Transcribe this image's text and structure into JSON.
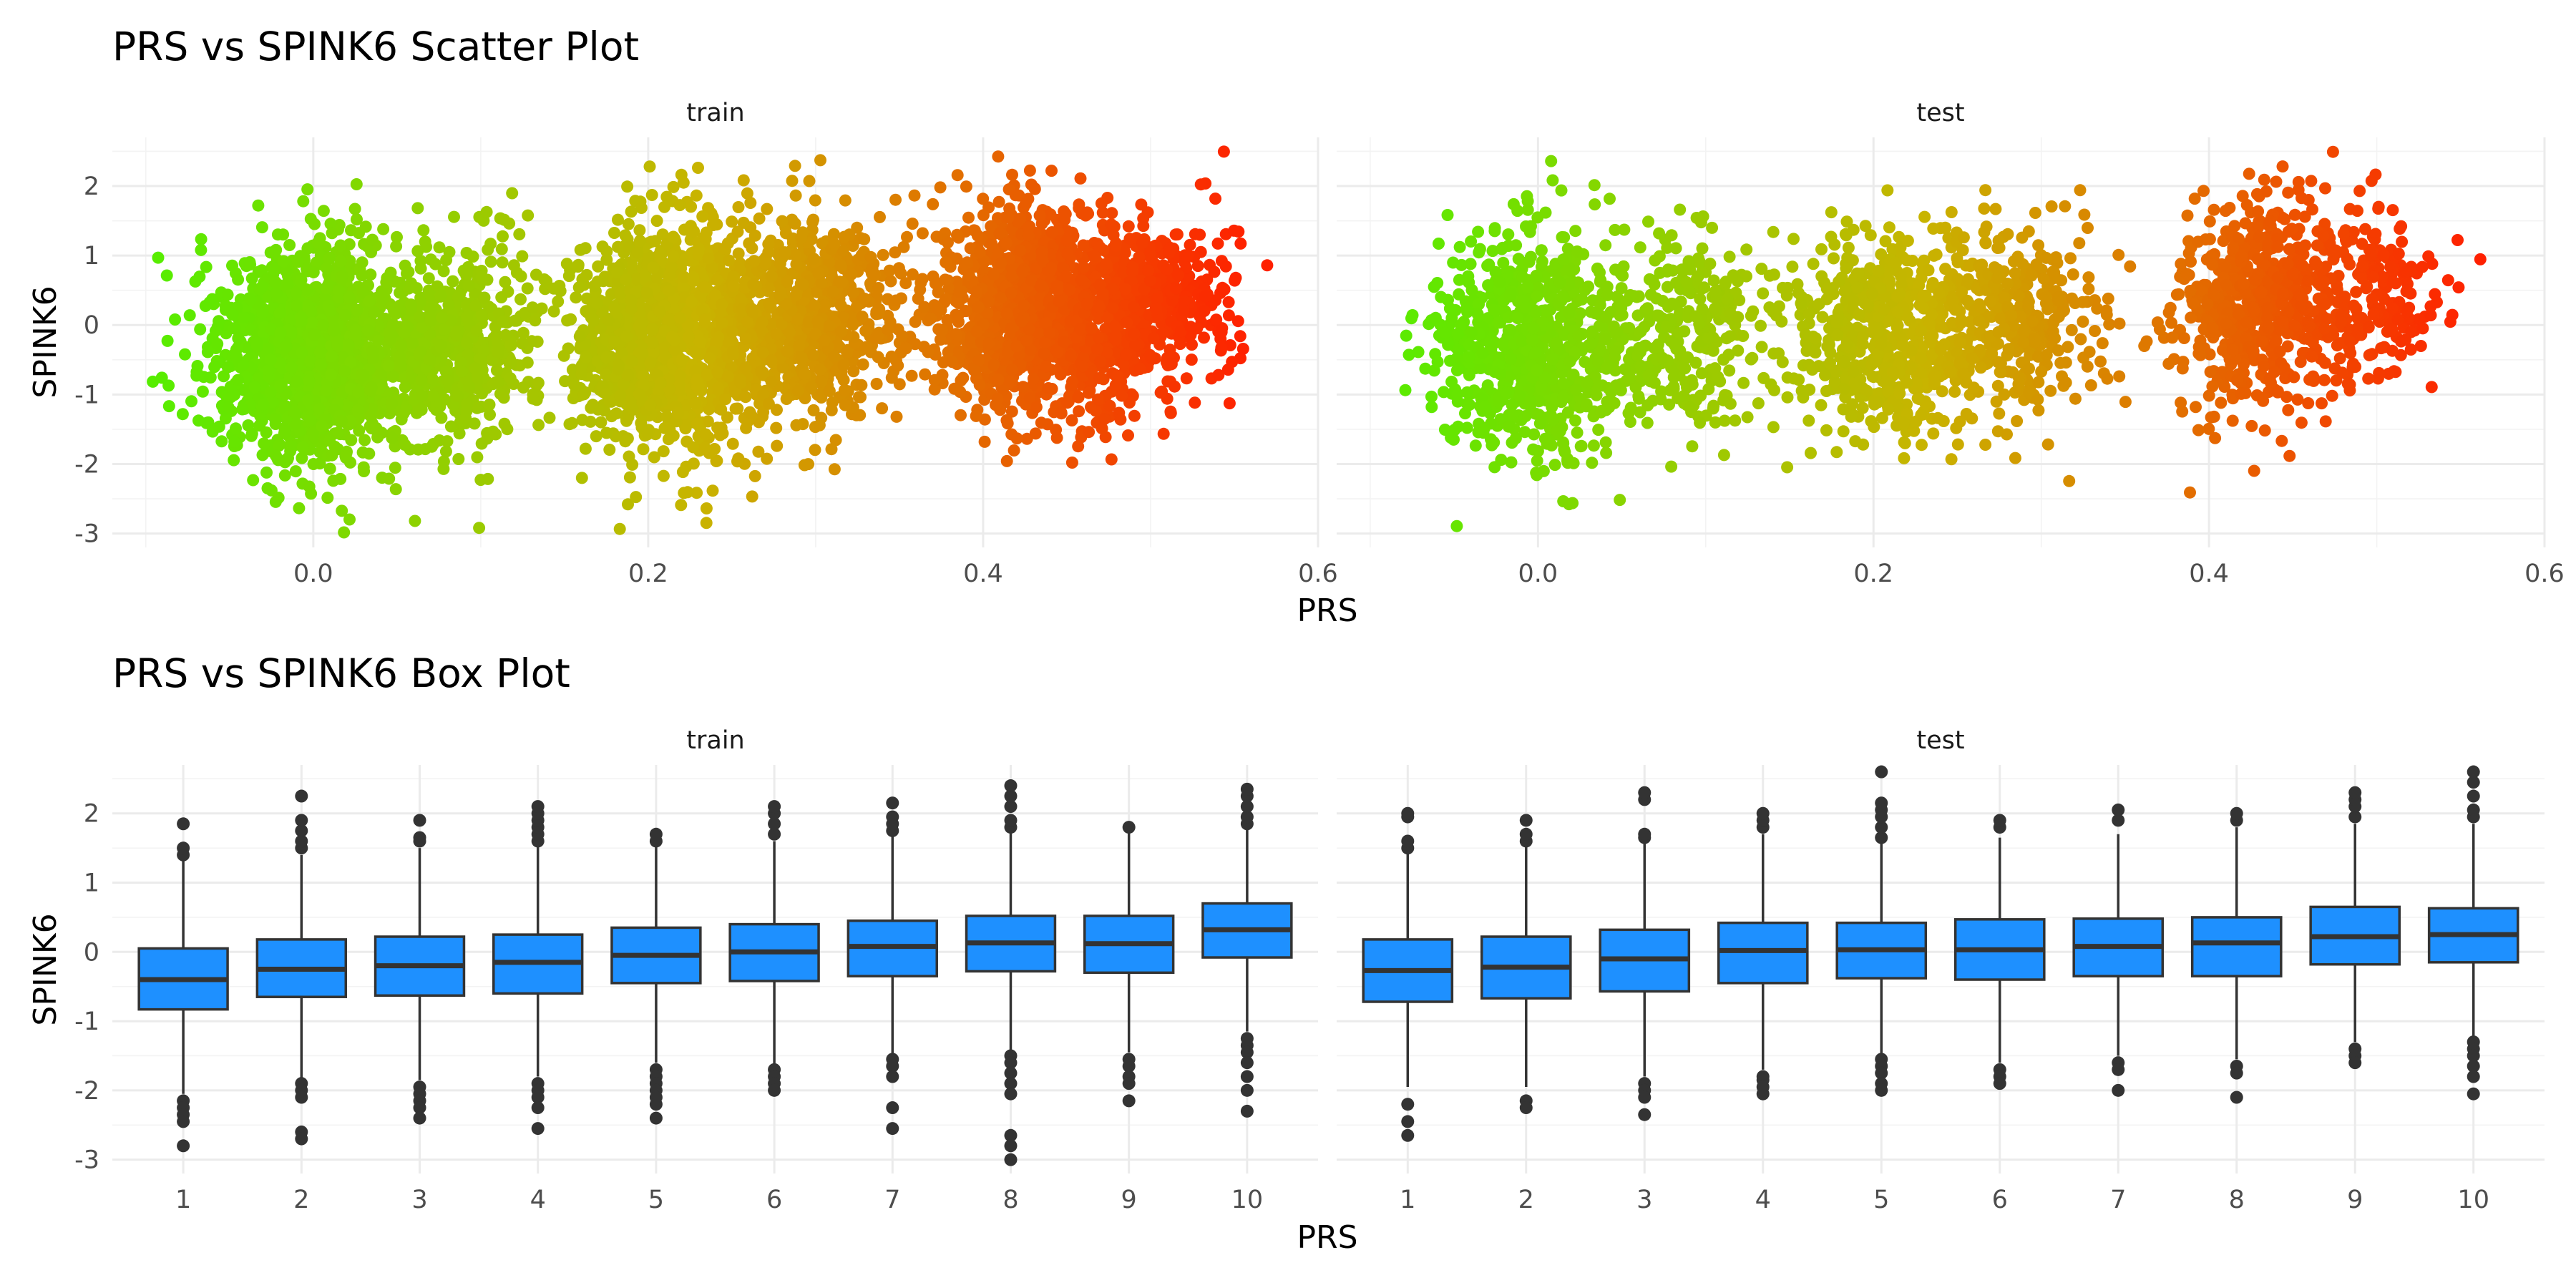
{
  "chart_data": [
    {
      "type": "scatter",
      "title": "PRS vs SPINK6 Scatter Plot",
      "xlabel": "PRS",
      "ylabel": "SPINK6",
      "panels": [
        "train",
        "test"
      ],
      "xlim": [
        -0.12,
        0.6
      ],
      "ylim": [
        -3.2,
        2.7
      ],
      "x_ticks": [
        "0.0",
        "0.2",
        "0.4",
        "0.6"
      ],
      "y_ticks": [
        "-3",
        "-2",
        "-1",
        "0",
        "1",
        "2"
      ],
      "grid": true,
      "color_scale": {
        "low": "#55ee00",
        "mid": "#c8b400",
        "high": "#ff2000"
      },
      "clusters": {
        "train": [
          {
            "x_center": 0.0,
            "x_spread": 0.03,
            "y_center": -0.4,
            "y_spread": 0.8,
            "n": 1400
          },
          {
            "x_center": 0.085,
            "x_spread": 0.025,
            "y_center": -0.3,
            "y_spread": 0.75,
            "n": 500
          },
          {
            "x_center": 0.215,
            "x_spread": 0.03,
            "y_center": -0.2,
            "y_spread": 0.8,
            "n": 1300
          },
          {
            "x_center": 0.3,
            "x_spread": 0.025,
            "y_center": 0.1,
            "y_spread": 0.7,
            "n": 600
          },
          {
            "x_center": 0.43,
            "x_spread": 0.03,
            "y_center": 0.2,
            "y_spread": 0.75,
            "n": 1300
          },
          {
            "x_center": 0.5,
            "x_spread": 0.025,
            "y_center": 0.3,
            "y_spread": 0.65,
            "n": 400
          }
        ],
        "test": [
          {
            "x_center": -0.005,
            "x_spread": 0.03,
            "y_center": -0.3,
            "y_spread": 0.8,
            "n": 700
          },
          {
            "x_center": 0.085,
            "x_spread": 0.025,
            "y_center": -0.1,
            "y_spread": 0.7,
            "n": 300
          },
          {
            "x_center": 0.21,
            "x_spread": 0.03,
            "y_center": -0.1,
            "y_spread": 0.8,
            "n": 650
          },
          {
            "x_center": 0.29,
            "x_spread": 0.025,
            "y_center": 0.1,
            "y_spread": 0.7,
            "n": 300
          },
          {
            "x_center": 0.43,
            "x_spread": 0.025,
            "y_center": 0.3,
            "y_spread": 0.75,
            "n": 600
          },
          {
            "x_center": 0.5,
            "x_spread": 0.02,
            "y_center": 0.4,
            "y_spread": 0.6,
            "n": 200
          }
        ]
      }
    },
    {
      "type": "box",
      "title": "PRS vs SPINK6 Box Plot",
      "xlabel": "PRS",
      "ylabel": "SPINK6",
      "panels": [
        "train",
        "test"
      ],
      "categories": [
        "1",
        "2",
        "3",
        "4",
        "5",
        "6",
        "7",
        "8",
        "9",
        "10"
      ],
      "ylim": [
        -3.2,
        2.7
      ],
      "y_ticks": [
        "-3",
        "-2",
        "-1",
        "0",
        "1",
        "2"
      ],
      "box_fill": "#1e90ff",
      "box_stroke": "#333333",
      "boxes": {
        "train": [
          {
            "q1": -0.83,
            "median": -0.4,
            "q3": 0.05,
            "lower": -2.05,
            "upper": 1.35,
            "outliers": [
              -2.15,
              -2.25,
              -2.35,
              -2.45,
              -2.8,
              1.4,
              1.5,
              1.85
            ]
          },
          {
            "q1": -0.65,
            "median": -0.25,
            "q3": 0.18,
            "lower": -1.85,
            "upper": 1.4,
            "outliers": [
              -1.9,
              -2.0,
              -2.1,
              -2.6,
              -2.7,
              1.5,
              1.6,
              1.75,
              1.9,
              2.25
            ]
          },
          {
            "q1": -0.63,
            "median": -0.2,
            "q3": 0.22,
            "lower": -1.85,
            "upper": 1.5,
            "outliers": [
              -1.95,
              -2.05,
              -2.15,
              -2.25,
              -2.4,
              1.6,
              1.65,
              1.9
            ]
          },
          {
            "q1": -0.6,
            "median": -0.15,
            "q3": 0.25,
            "lower": -1.8,
            "upper": 1.55,
            "outliers": [
              -1.9,
              -2.0,
              -2.1,
              -2.25,
              -2.55,
              1.6,
              1.7,
              1.8,
              1.9,
              2.0,
              2.1
            ]
          },
          {
            "q1": -0.45,
            "median": -0.05,
            "q3": 0.35,
            "lower": -1.6,
            "upper": 1.55,
            "outliers": [
              -1.7,
              -1.8,
              -1.9,
              -2.0,
              -2.1,
              -2.2,
              -2.4,
              1.6,
              1.7
            ]
          },
          {
            "q1": -0.42,
            "median": 0.0,
            "q3": 0.4,
            "lower": -1.65,
            "upper": 1.6,
            "outliers": [
              -1.7,
              -1.8,
              -1.9,
              -2.0,
              1.7,
              1.85,
              2.0,
              2.1
            ]
          },
          {
            "q1": -0.35,
            "median": 0.08,
            "q3": 0.45,
            "lower": -1.5,
            "upper": 1.7,
            "outliers": [
              -1.55,
              -1.65,
              -1.8,
              -2.25,
              -2.55,
              1.75,
              1.85,
              1.95,
              2.15
            ]
          },
          {
            "q1": -0.28,
            "median": 0.13,
            "q3": 0.52,
            "lower": -1.45,
            "upper": 1.75,
            "outliers": [
              -1.5,
              -1.6,
              -1.75,
              -1.9,
              -2.05,
              -2.65,
              -2.8,
              -3.0,
              1.8,
              1.9,
              2.1,
              2.25,
              2.4
            ]
          },
          {
            "q1": -0.3,
            "median": 0.12,
            "q3": 0.52,
            "lower": -1.45,
            "upper": 1.75,
            "outliers": [
              -1.55,
              -1.65,
              -1.8,
              -1.9,
              -2.15,
              1.8
            ]
          },
          {
            "q1": -0.08,
            "median": 0.32,
            "q3": 0.7,
            "lower": -1.15,
            "upper": 1.8,
            "outliers": [
              -1.25,
              -1.35,
              -1.45,
              -1.6,
              -1.8,
              -2.0,
              -2.3,
              1.85,
              1.95,
              2.1,
              2.25,
              2.35
            ]
          }
        ],
        "test": [
          {
            "q1": -0.72,
            "median": -0.27,
            "q3": 0.18,
            "lower": -1.95,
            "upper": 1.45,
            "outliers": [
              -2.2,
              -2.45,
              -2.65,
              1.5,
              1.6,
              1.95,
              2.0
            ]
          },
          {
            "q1": -0.67,
            "median": -0.22,
            "q3": 0.22,
            "lower": -1.95,
            "upper": 1.55,
            "outliers": [
              -2.15,
              -2.25,
              1.6,
              1.7,
              1.9
            ]
          },
          {
            "q1": -0.57,
            "median": -0.1,
            "q3": 0.32,
            "lower": -1.8,
            "upper": 1.6,
            "outliers": [
              -1.9,
              -2.0,
              -2.1,
              -2.35,
              1.65,
              1.7,
              2.2,
              2.3
            ]
          },
          {
            "q1": -0.45,
            "median": 0.02,
            "q3": 0.42,
            "lower": -1.7,
            "upper": 1.7,
            "outliers": [
              -1.8,
              -1.85,
              -1.95,
              -2.05,
              1.8,
              1.9,
              2.0
            ]
          },
          {
            "q1": -0.38,
            "median": 0.03,
            "q3": 0.42,
            "lower": -1.5,
            "upper": 1.6,
            "outliers": [
              -1.55,
              -1.65,
              -1.75,
              -1.9,
              -2.0,
              1.65,
              1.8,
              1.95,
              2.05,
              2.15,
              2.6
            ]
          },
          {
            "q1": -0.4,
            "median": 0.03,
            "q3": 0.47,
            "lower": -1.6,
            "upper": 1.65,
            "outliers": [
              -1.7,
              -1.8,
              -1.9,
              1.8,
              1.9
            ]
          },
          {
            "q1": -0.35,
            "median": 0.08,
            "q3": 0.48,
            "lower": -1.5,
            "upper": 1.7,
            "outliers": [
              -1.6,
              -1.7,
              -2.0,
              1.9,
              2.05
            ]
          },
          {
            "q1": -0.35,
            "median": 0.13,
            "q3": 0.5,
            "lower": -1.55,
            "upper": 1.8,
            "outliers": [
              -1.65,
              -1.75,
              -2.1,
              1.9,
              2.0
            ]
          },
          {
            "q1": -0.18,
            "median": 0.22,
            "q3": 0.65,
            "lower": -1.3,
            "upper": 1.85,
            "outliers": [
              -1.4,
              -1.5,
              -1.6,
              1.95,
              2.1,
              2.2,
              2.3
            ]
          },
          {
            "q1": -0.15,
            "median": 0.25,
            "q3": 0.63,
            "lower": -1.25,
            "upper": 1.85,
            "outliers": [
              -1.3,
              -1.4,
              -1.5,
              -1.65,
              -1.8,
              -2.05,
              1.95,
              2.05,
              2.25,
              2.45,
              2.6
            ]
          }
        ]
      }
    }
  ]
}
